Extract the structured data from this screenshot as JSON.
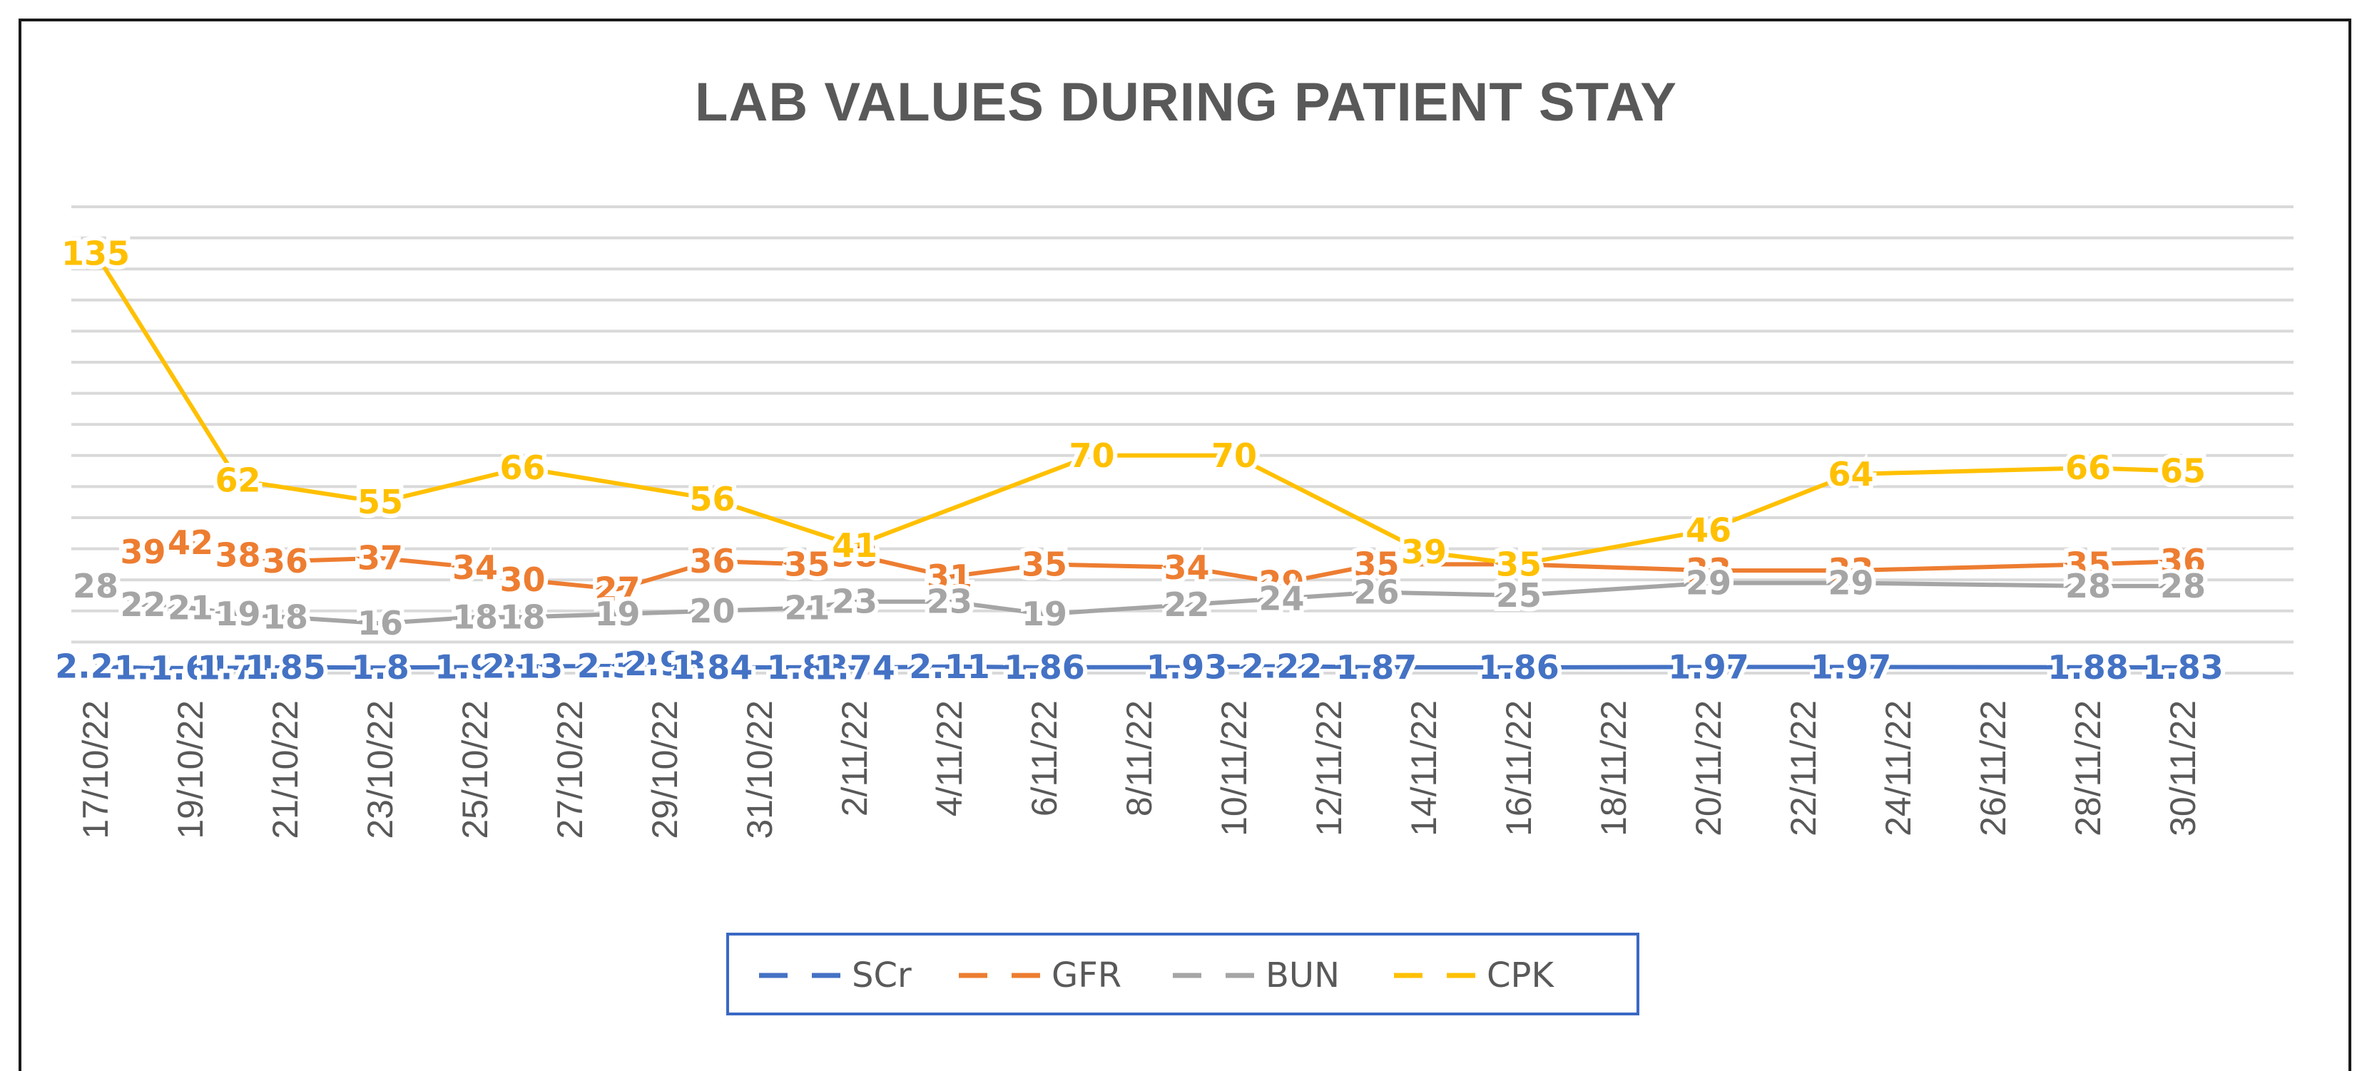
{
  "chart_data": {
    "type": "line",
    "title": "LAB VALUES DURING PATIENT STAY",
    "xlabel": "",
    "ylabel": "",
    "ylim": [
      0,
      150
    ],
    "grid": true,
    "legend_position": "bottom",
    "x_tick_labels": [
      "17/10/22",
      "19/10/22",
      "21/10/22",
      "23/10/22",
      "25/10/22",
      "27/10/22",
      "29/10/22",
      "31/10/22",
      "2/11/22",
      "4/11/22",
      "6/11/22",
      "8/11/22",
      "10/11/22",
      "12/11/22",
      "14/11/22",
      "16/11/22",
      "18/11/22",
      "20/11/22",
      "22/11/22",
      "24/11/22",
      "26/11/22",
      "28/11/22",
      "30/11/22"
    ],
    "series": [
      {
        "name": "SCr",
        "color": "#4472c4",
        "points": [
          {
            "day": 0,
            "value": "2.21"
          },
          {
            "day": 1,
            "value": "1.7"
          },
          {
            "day": 2,
            "value": "1.61"
          },
          {
            "day": 3,
            "value": "1.71"
          },
          {
            "day": 4,
            "value": "1.85"
          },
          {
            "day": 6,
            "value": "1.8"
          },
          {
            "day": 8,
            "value": "1.98"
          },
          {
            "day": 9,
            "value": "2.13"
          },
          {
            "day": 11,
            "value": "2.32"
          },
          {
            "day": 12,
            "value": "2.98"
          },
          {
            "day": 13,
            "value": "1.84"
          },
          {
            "day": 15,
            "value": "1.88"
          },
          {
            "day": 16,
            "value": "1.74"
          },
          {
            "day": 18,
            "value": "2.11"
          },
          {
            "day": 20,
            "value": "1.86"
          },
          {
            "day": 23,
            "value": "1.93"
          },
          {
            "day": 25,
            "value": "2.22"
          },
          {
            "day": 27,
            "value": "1.87"
          },
          {
            "day": 30,
            "value": "1.86"
          },
          {
            "day": 34,
            "value": "1.97"
          },
          {
            "day": 37,
            "value": "1.97"
          },
          {
            "day": 42,
            "value": "1.88"
          },
          {
            "day": 44,
            "value": "1.83"
          }
        ]
      },
      {
        "name": "GFR",
        "color": "#ed7d31",
        "points": [
          {
            "day": 1,
            "value": 39
          },
          {
            "day": 2,
            "value": 42
          },
          {
            "day": 3,
            "value": 38
          },
          {
            "day": 4,
            "value": 36
          },
          {
            "day": 6,
            "value": 37
          },
          {
            "day": 8,
            "value": 34
          },
          {
            "day": 9,
            "value": 30
          },
          {
            "day": 11,
            "value": 27
          },
          {
            "day": 13,
            "value": 36
          },
          {
            "day": 15,
            "value": 35
          },
          {
            "day": 16,
            "value": 38
          },
          {
            "day": 18,
            "value": 31
          },
          {
            "day": 20,
            "value": 35
          },
          {
            "day": 23,
            "value": 34
          },
          {
            "day": 25,
            "value": 29
          },
          {
            "day": 27,
            "value": 35
          },
          {
            "day": 30,
            "value": 35
          },
          {
            "day": 34,
            "value": 33
          },
          {
            "day": 37,
            "value": 33
          },
          {
            "day": 42,
            "value": 35
          },
          {
            "day": 44,
            "value": 36
          }
        ]
      },
      {
        "name": "BUN",
        "color": "#a5a5a5",
        "points": [
          {
            "day": 0,
            "value": 28
          },
          {
            "day": 1,
            "value": 22
          },
          {
            "day": 2,
            "value": 21
          },
          {
            "day": 3,
            "value": 19
          },
          {
            "day": 4,
            "value": 18
          },
          {
            "day": 6,
            "value": 16
          },
          {
            "day": 8,
            "value": 18
          },
          {
            "day": 9,
            "value": 18
          },
          {
            "day": 11,
            "value": 19
          },
          {
            "day": 13,
            "value": 20
          },
          {
            "day": 15,
            "value": 21
          },
          {
            "day": 16,
            "value": 23
          },
          {
            "day": 18,
            "value": 23
          },
          {
            "day": 20,
            "value": 19
          },
          {
            "day": 23,
            "value": 22
          },
          {
            "day": 25,
            "value": 24
          },
          {
            "day": 27,
            "value": 26
          },
          {
            "day": 30,
            "value": 25
          },
          {
            "day": 34,
            "value": 29
          },
          {
            "day": 37,
            "value": 29
          },
          {
            "day": 42,
            "value": 28
          },
          {
            "day": 44,
            "value": 28
          }
        ]
      },
      {
        "name": "CPK",
        "color": "#ffc000",
        "points": [
          {
            "day": 0,
            "value": 135
          },
          {
            "day": 3,
            "value": 62
          },
          {
            "day": 6,
            "value": 55
          },
          {
            "day": 9,
            "value": 66
          },
          {
            "day": 13,
            "value": 56
          },
          {
            "day": 16,
            "value": 41
          },
          {
            "day": 21,
            "value": 70
          },
          {
            "day": 24,
            "value": 70
          },
          {
            "day": 28,
            "value": 39
          },
          {
            "day": 30,
            "value": 35
          },
          {
            "day": 34,
            "value": 46
          },
          {
            "day": 37,
            "value": 64
          },
          {
            "day": 42,
            "value": 66
          },
          {
            "day": 44,
            "value": 65
          }
        ]
      }
    ]
  }
}
